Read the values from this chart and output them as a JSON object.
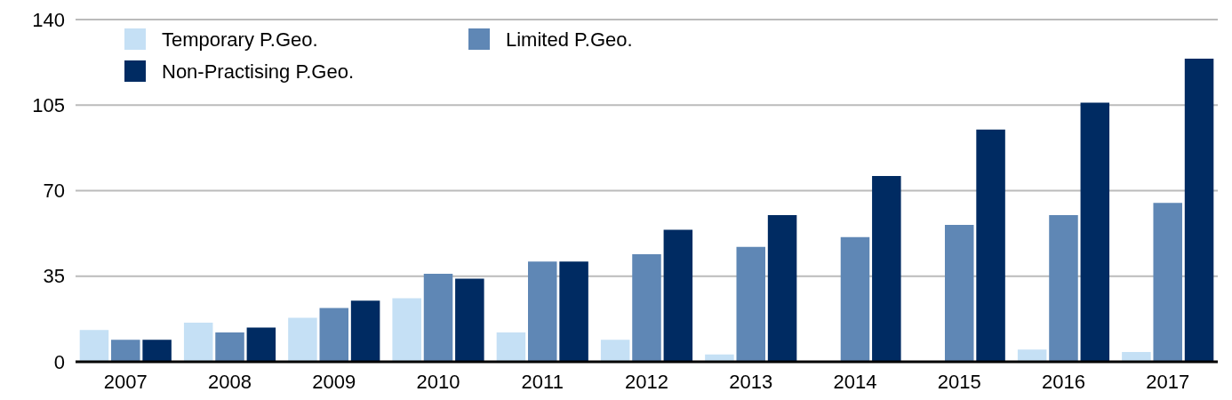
{
  "chart_data": {
    "type": "bar",
    "categories": [
      "2007",
      "2008",
      "2009",
      "2010",
      "2011",
      "2012",
      "2013",
      "2014",
      "2015",
      "2016",
      "2017"
    ],
    "series": [
      {
        "name": "Temporary P.Geo.",
        "color": "#c5e0f5",
        "values": [
          13,
          16,
          18,
          26,
          12,
          9,
          3,
          0,
          0,
          5,
          4
        ]
      },
      {
        "name": "Limited P.Geo.",
        "color": "#5f87b5",
        "values": [
          9,
          12,
          22,
          36,
          41,
          44,
          47,
          51,
          56,
          60,
          65
        ]
      },
      {
        "name": "Non-Practising P.Geo.",
        "color": "#002b62",
        "values": [
          9,
          14,
          25,
          34,
          41,
          54,
          60,
          76,
          95,
          106,
          124
        ]
      }
    ],
    "ylim": [
      0,
      140
    ],
    "yticks": [
      0,
      35,
      70,
      105,
      140
    ],
    "grid": "y",
    "legend": "top left"
  }
}
